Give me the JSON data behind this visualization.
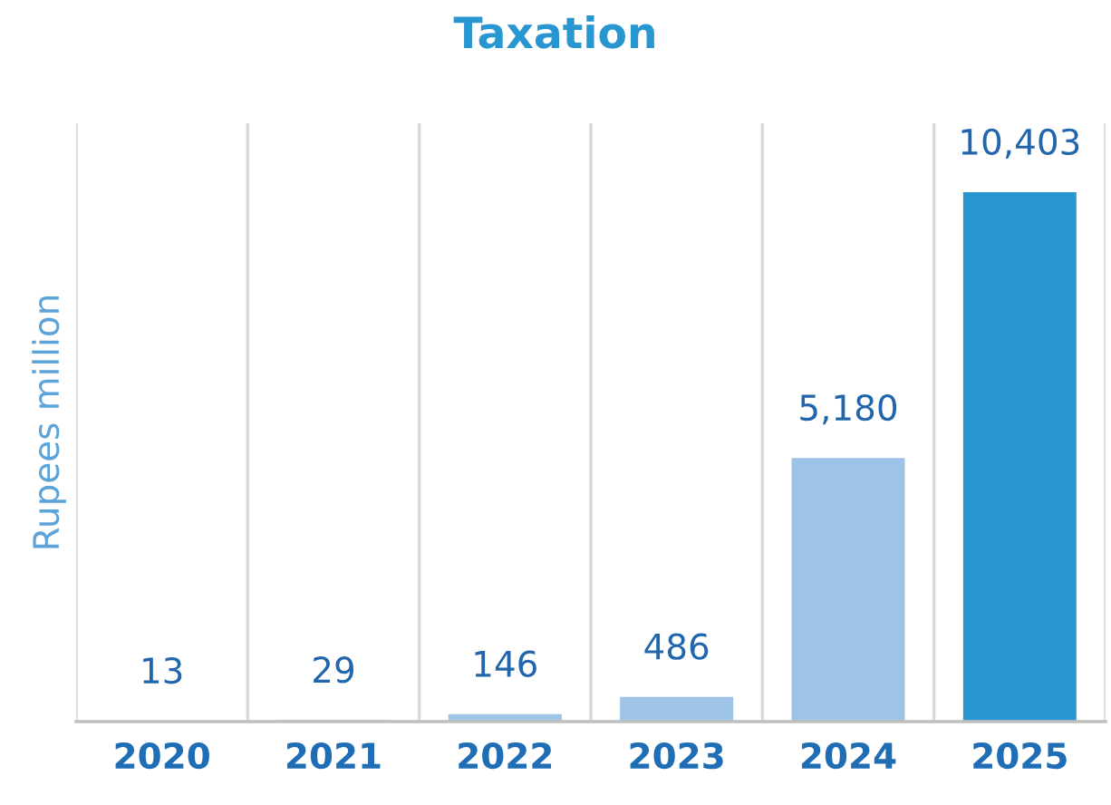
{
  "chart_data": {
    "type": "bar",
    "title": "Taxation",
    "ylabel": "Rupees million",
    "categories": [
      "2020",
      "2021",
      "2022",
      "2023",
      "2024",
      "2025"
    ],
    "values": [
      13,
      29,
      146,
      486,
      5180,
      10403
    ],
    "colors": [
      "#9dc3e6",
      "#9dc3e6",
      "#9dc3e6",
      "#9dc3e6",
      "#9dc3e6",
      "#2896d0"
    ],
    "value_labels": [
      "13",
      "29",
      "146",
      "486",
      "5,180",
      "10,403"
    ],
    "grid": "x",
    "legend": false
  }
}
